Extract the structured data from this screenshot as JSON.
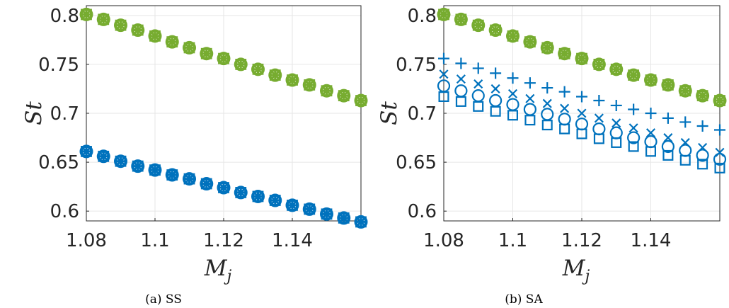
{
  "colors": {
    "green": "#77AC30",
    "blue": "#0072BD",
    "grid": "#e6e6e6",
    "axis": "#262626"
  },
  "chart_data": [
    {
      "type": "scatter",
      "caption": "(a) SS",
      "xlabel": "M",
      "xlabel_sub": "j",
      "ylabel": "St",
      "xlim": [
        1.08,
        1.16
      ],
      "ylim": [
        0.59,
        0.81
      ],
      "xticks": [
        "1.08",
        "1.1",
        "1.12",
        "1.14"
      ],
      "yticks": [
        "0.6",
        "0.65",
        "0.7",
        "0.75",
        "0.8"
      ],
      "grid": true,
      "x": [
        1.08,
        1.085,
        1.09,
        1.095,
        1.1,
        1.105,
        1.11,
        1.115,
        1.12,
        1.125,
        1.13,
        1.135,
        1.14,
        1.145,
        1.15,
        1.155,
        1.16
      ],
      "series": [
        {
          "color": "green",
          "markers": [
            "+",
            "x",
            "o",
            "square"
          ],
          "values": [
            0.801,
            0.796,
            0.79,
            0.785,
            0.779,
            0.773,
            0.767,
            0.761,
            0.756,
            0.75,
            0.745,
            0.739,
            0.734,
            0.729,
            0.723,
            0.718,
            0.713
          ]
        },
        {
          "color": "blue",
          "markers": [
            "+",
            "x",
            "o",
            "square"
          ],
          "values": [
            0.661,
            0.656,
            0.651,
            0.646,
            0.642,
            0.637,
            0.633,
            0.628,
            0.624,
            0.619,
            0.615,
            0.611,
            0.606,
            0.602,
            0.597,
            0.593,
            0.589
          ]
        }
      ]
    },
    {
      "type": "scatter",
      "caption": "(b) SA",
      "xlabel": "M",
      "xlabel_sub": "j",
      "ylabel": "St",
      "xlim": [
        1.08,
        1.16
      ],
      "ylim": [
        0.59,
        0.81
      ],
      "xticks": [
        "1.08",
        "1.1",
        "1.12",
        "1.14"
      ],
      "yticks": [
        "0.6",
        "0.65",
        "0.7",
        "0.75",
        "0.8"
      ],
      "grid": true,
      "x": [
        1.08,
        1.085,
        1.09,
        1.095,
        1.1,
        1.105,
        1.11,
        1.115,
        1.12,
        1.125,
        1.13,
        1.135,
        1.14,
        1.145,
        1.15,
        1.155,
        1.16
      ],
      "series": [
        {
          "color": "green",
          "markers": [
            "+",
            "x",
            "o",
            "square"
          ],
          "values": [
            0.801,
            0.796,
            0.79,
            0.785,
            0.779,
            0.773,
            0.767,
            0.761,
            0.756,
            0.75,
            0.745,
            0.739,
            0.734,
            0.729,
            0.723,
            0.718,
            0.713
          ]
        },
        {
          "color": "blue",
          "markers": [
            "+"
          ],
          "values": [
            0.756,
            0.751,
            0.746,
            0.741,
            0.736,
            0.731,
            0.726,
            0.722,
            0.717,
            0.713,
            0.708,
            0.704,
            0.7,
            0.695,
            0.691,
            0.687,
            0.683
          ]
        },
        {
          "color": "blue",
          "markers": [
            "x"
          ],
          "values": [
            0.74,
            0.735,
            0.73,
            0.725,
            0.72,
            0.715,
            0.71,
            0.705,
            0.7,
            0.695,
            0.69,
            0.685,
            0.68,
            0.675,
            0.67,
            0.665,
            0.66
          ]
        },
        {
          "color": "blue",
          "markers": [
            "o"
          ],
          "values": [
            0.728,
            0.723,
            0.718,
            0.713,
            0.709,
            0.704,
            0.699,
            0.694,
            0.689,
            0.684,
            0.68,
            0.675,
            0.671,
            0.666,
            0.662,
            0.657,
            0.653
          ]
        },
        {
          "color": "blue",
          "markers": [
            "square"
          ],
          "values": [
            0.717,
            0.712,
            0.707,
            0.702,
            0.698,
            0.693,
            0.688,
            0.684,
            0.679,
            0.674,
            0.67,
            0.666,
            0.661,
            0.657,
            0.652,
            0.648,
            0.644
          ]
        }
      ]
    }
  ]
}
